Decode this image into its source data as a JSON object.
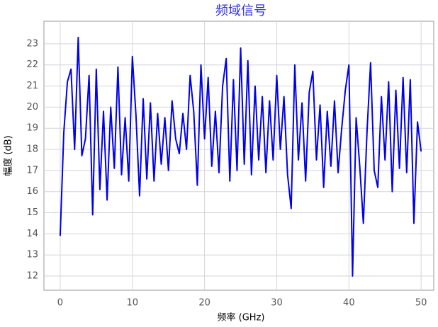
{
  "chart_data": {
    "type": "line",
    "title": "频域信号",
    "x_label": "频率 (GHz)",
    "y_label": "幅度 (dB)",
    "x": [
      0,
      0.5,
      1,
      1.5,
      2,
      2.5,
      3,
      3.5,
      4,
      4.5,
      5,
      5.5,
      6,
      6.5,
      7,
      7.5,
      8,
      8.5,
      9,
      9.5,
      10,
      10.5,
      11,
      11.5,
      12,
      12.5,
      13,
      13.5,
      14,
      14.5,
      15,
      15.5,
      16,
      16.5,
      17,
      17.5,
      18,
      18.5,
      19,
      19.5,
      20,
      20.5,
      21,
      21.5,
      22,
      22.5,
      23,
      23.5,
      24,
      24.5,
      25,
      25.5,
      26,
      26.5,
      27,
      27.5,
      28,
      28.5,
      29,
      29.5,
      30,
      30.5,
      31,
      31.5,
      32,
      32.5,
      33,
      33.5,
      34,
      34.5,
      35,
      35.5,
      36,
      36.5,
      37,
      37.5,
      38,
      38.5,
      39,
      39.5,
      40,
      40.5,
      41,
      41.5,
      42,
      42.5,
      43,
      43.5,
      44,
      44.5,
      45,
      45.5,
      46,
      46.5,
      47,
      47.5,
      48,
      48.5,
      49,
      49.5,
      50
    ],
    "series": [
      {
        "color": "#0000ee",
        "values": [
          13.9,
          18.8,
          21.2,
          21.8,
          18.0,
          23.3,
          17.7,
          18.5,
          21.5,
          14.9,
          21.8,
          16.1,
          19.8,
          15.6,
          20.0,
          17.1,
          21.9,
          16.8,
          19.5,
          16.5,
          22.4,
          19.6,
          15.8,
          20.4,
          16.6,
          20.2,
          16.5,
          19.7,
          17.3,
          19.5,
          17.0,
          20.3,
          18.5,
          17.8,
          19.7,
          18.0,
          21.5,
          19.8,
          16.3,
          22.0,
          18.5,
          21.4,
          17.2,
          19.8,
          16.9,
          21.0,
          22.3,
          16.5,
          21.3,
          17.0,
          22.8,
          17.3,
          22.2,
          16.8,
          21.0,
          17.5,
          20.5,
          16.9,
          20.3,
          17.5,
          21.5,
          18.0,
          20.5,
          16.8,
          15.2,
          22.0,
          17.5,
          20.2,
          16.5,
          20.7,
          21.7,
          17.5,
          20.1,
          16.2,
          19.8,
          17.2,
          20.3,
          16.9,
          19.0,
          20.8,
          22.0,
          12.0,
          19.5,
          17.2,
          14.5,
          18.8,
          22.1,
          17.0,
          16.2,
          20.5,
          17.5,
          21.2,
          16.0,
          20.8,
          17.1,
          21.4,
          16.9,
          21.3,
          14.5,
          19.3,
          17.9
        ]
      }
    ],
    "xlim": [
      -2.25,
      51.75
    ],
    "ylim": [
      11.33,
      24.07
    ],
    "xticks": [
      0,
      10,
      20,
      30,
      40,
      50
    ],
    "yticks": [
      12,
      13,
      14,
      15,
      16,
      17,
      18,
      19,
      20,
      21,
      22,
      23
    ],
    "grid": true
  }
}
